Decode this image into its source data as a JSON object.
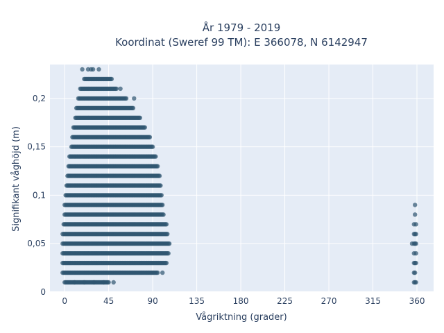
{
  "chart_data": {
    "type": "scatter",
    "title_lines": [
      "År 1979 - 2019",
      "Koordinat (Sweref 99 TM): E 366078, N 6142947"
    ],
    "xlabel": "Vågriktning (grader)",
    "ylabel": "Signifikant våghöjd (m)",
    "xlim": [
      -15,
      377
    ],
    "ylim": [
      0,
      0.235
    ],
    "x_ticks": [
      0,
      45,
      90,
      135,
      180,
      225,
      270,
      315,
      360
    ],
    "x_tick_labels": [
      "0",
      "45",
      "90",
      "135",
      "180",
      "225",
      "270",
      "315",
      "360"
    ],
    "y_ticks": [
      0,
      0.05,
      0.1,
      0.15,
      0.2
    ],
    "y_tick_labels": [
      "0",
      "0,05",
      "0,1",
      "0,15",
      "0,2"
    ],
    "grid": true,
    "legend": "none",
    "marker_color": "#2f5670",
    "background_color": "#e5ecf6",
    "series": [
      {
        "rows": [
          {
            "y": 0.01,
            "x_min": 0,
            "x_max": 44,
            "extra_x": [
              10,
              20,
              30,
              40,
              45,
              50
            ]
          },
          {
            "y": 0.02,
            "x_min": -2,
            "x_max": 95,
            "extra_x": [
              100
            ]
          },
          {
            "y": 0.03,
            "x_min": -2,
            "x_max": 104,
            "extra_x": []
          },
          {
            "y": 0.04,
            "x_min": -2,
            "x_max": 106,
            "extra_x": []
          },
          {
            "y": 0.05,
            "x_min": -2,
            "x_max": 107,
            "extra_x": []
          },
          {
            "y": 0.06,
            "x_min": -2,
            "x_max": 105,
            "extra_x": []
          },
          {
            "y": 0.07,
            "x_min": -1,
            "x_max": 104,
            "extra_x": []
          },
          {
            "y": 0.08,
            "x_min": 0,
            "x_max": 101,
            "extra_x": []
          },
          {
            "y": 0.09,
            "x_min": 0,
            "x_max": 100,
            "extra_x": []
          },
          {
            "y": 0.1,
            "x_min": 1,
            "x_max": 99,
            "extra_x": []
          },
          {
            "y": 0.11,
            "x_min": 2,
            "x_max": 98,
            "extra_x": []
          },
          {
            "y": 0.12,
            "x_min": 3,
            "x_max": 97,
            "extra_x": []
          },
          {
            "y": 0.13,
            "x_min": 4,
            "x_max": 95,
            "extra_x": []
          },
          {
            "y": 0.14,
            "x_min": 5,
            "x_max": 93,
            "extra_x": []
          },
          {
            "y": 0.15,
            "x_min": 7,
            "x_max": 90,
            "extra_x": []
          },
          {
            "y": 0.16,
            "x_min": 8,
            "x_max": 87,
            "extra_x": []
          },
          {
            "y": 0.17,
            "x_min": 9,
            "x_max": 82,
            "extra_x": []
          },
          {
            "y": 0.18,
            "x_min": 11,
            "x_max": 77,
            "extra_x": []
          },
          {
            "y": 0.19,
            "x_min": 12,
            "x_max": 70,
            "extra_x": []
          },
          {
            "y": 0.2,
            "x_min": 14,
            "x_max": 63,
            "extra_x": [
              71
            ]
          },
          {
            "y": 0.21,
            "x_min": 16,
            "x_max": 53,
            "extra_x": [
              57
            ]
          },
          {
            "y": 0.22,
            "x_min": 20,
            "x_max": 48,
            "extra_x": []
          },
          {
            "y": 0.23,
            "x_min": 24,
            "x_max": 24,
            "extra_x": [
              18,
              27,
              29,
              35
            ]
          }
        ],
        "points_near_360": [
          [
            355,
            0.05
          ],
          [
            357,
            0.01
          ],
          [
            358,
            0.01
          ],
          [
            359,
            0.01
          ],
          [
            357,
            0.02
          ],
          [
            358,
            0.02
          ],
          [
            357,
            0.03
          ],
          [
            358,
            0.03
          ],
          [
            359,
            0.03
          ],
          [
            357,
            0.04
          ],
          [
            359,
            0.04
          ],
          [
            357,
            0.05
          ],
          [
            358,
            0.05
          ],
          [
            359,
            0.05
          ],
          [
            357,
            0.06
          ],
          [
            358,
            0.06
          ],
          [
            359,
            0.06
          ],
          [
            357,
            0.07
          ],
          [
            359,
            0.07
          ],
          [
            358,
            0.08
          ],
          [
            358,
            0.09
          ]
        ]
      }
    ]
  }
}
